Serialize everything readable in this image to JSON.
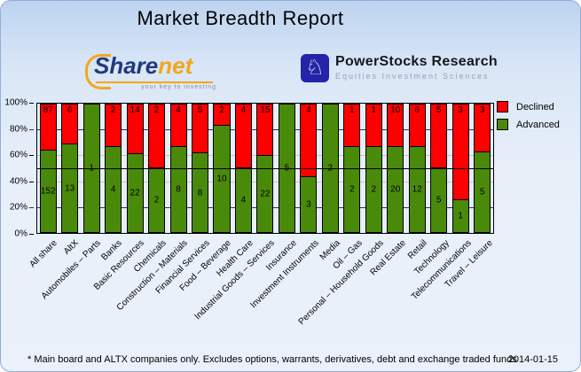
{
  "title": "Market Breadth Report",
  "logos": {
    "sharenet": {
      "name_part1": "Share",
      "name_part2": "net",
      "tagline": "your key to investing",
      "brand_blue": "#1f3a7d",
      "brand_orange": "#f2a71b"
    },
    "powerstocks": {
      "icon": "knight-chess-icon",
      "name": "PowerStocks  Research",
      "tagline": "Equities Investment Sciences",
      "icon_bg": "#2424a8"
    }
  },
  "legend": [
    {
      "label": "Declined",
      "color": "#ff0000"
    },
    {
      "label": "Advanced",
      "color": "#4a8a0b"
    }
  ],
  "footer": {
    "note": "* Main board and ALTX companies only. Excludes options, warrants, derivatives, debt and exchange traded funds",
    "date": "2014-01-15"
  },
  "chart_data": {
    "type": "bar",
    "stacked": true,
    "normalized_to_percent": true,
    "title": "Market Breadth Report",
    "categories": [
      "All share",
      "AltX",
      "Automobiles – Parts",
      "Banks",
      "Basic Resources",
      "Chemicals",
      "Construction – Materials",
      "Financial Services",
      "Food – Beverage",
      "Health Care",
      "Industrial Goods – Services",
      "Insurance",
      "Investment Instruments",
      "Media",
      "Oil – Gas",
      "Personal – Household Goods",
      "Real Estate",
      "Retail",
      "Technology",
      "Telecommunications",
      "Travel – Leisure"
    ],
    "series": [
      {
        "name": "Declined",
        "color": "#ff0000",
        "values": [
          87,
          6,
          0,
          2,
          14,
          2,
          4,
          5,
          2,
          4,
          15,
          0,
          4,
          0,
          1,
          1,
          10,
          6,
          5,
          3,
          3
        ]
      },
      {
        "name": "Advanced",
        "color": "#4a8a0b",
        "values": [
          152,
          13,
          1,
          4,
          22,
          2,
          8,
          8,
          10,
          4,
          22,
          5,
          3,
          2,
          2,
          2,
          20,
          12,
          5,
          1,
          5
        ]
      }
    ],
    "xlabel": "",
    "ylabel": "",
    "ylim": [
      0,
      100
    ],
    "y_ticks": [
      "100%",
      "80%",
      "60%",
      "40%",
      "20%",
      "0%"
    ],
    "gridlines": {
      "navy_at": [
        80,
        20
      ],
      "gray_at": [
        60,
        40
      ],
      "black_at": [
        50
      ]
    },
    "legend_position": "top-right",
    "bar_value_labels": "counts shown inside segments"
  }
}
